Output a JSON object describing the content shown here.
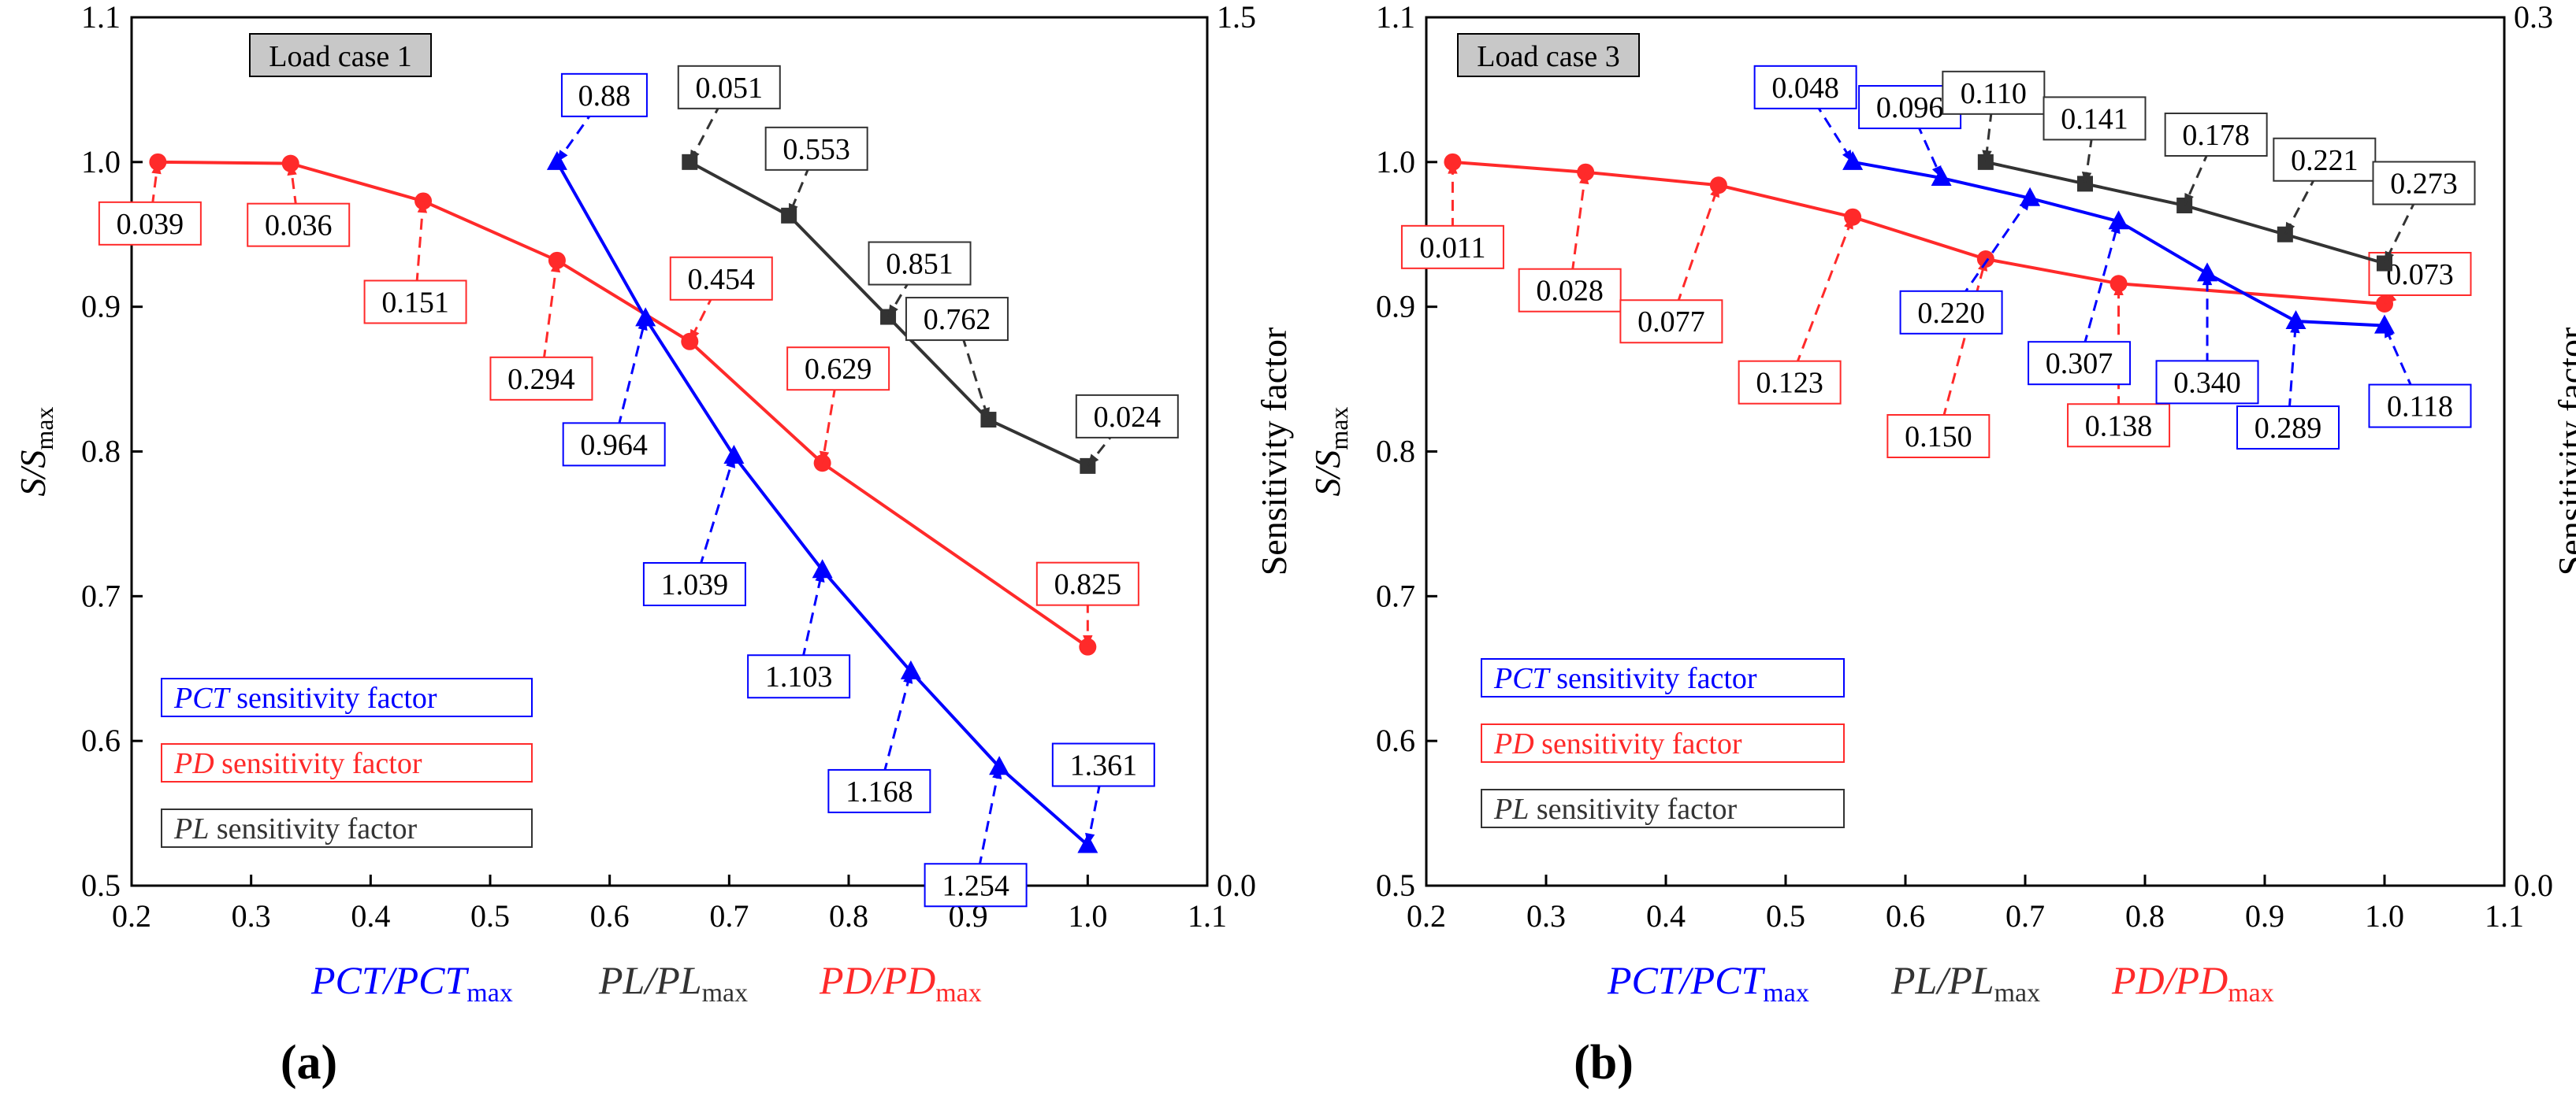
{
  "colors": {
    "blue": "#0000ff",
    "red": "#ff2a2a",
    "black": "#333333",
    "label_bg": "#c8c8c8"
  },
  "chart_data": [
    {
      "panel_label": "(a)",
      "type": "line",
      "case_label": "Load case 1",
      "xlim": [
        0.2,
        1.1
      ],
      "ylim": [
        0.5,
        1.1
      ],
      "y2lim": [
        0.0,
        1.5
      ],
      "xticks": [
        "0.2",
        "0.3",
        "0.4",
        "0.5",
        "0.6",
        "0.7",
        "0.8",
        "0.9",
        "1.0",
        "1.1"
      ],
      "yticks": [
        "0.5",
        "0.6",
        "0.7",
        "0.8",
        "0.9",
        "1.0",
        "1.1"
      ],
      "y2ticks": [
        "0.0",
        "1.5"
      ],
      "ylabel": {
        "main": "S/S",
        "sub": "max"
      },
      "y2label": "Sensitivity factor",
      "xlabel_parts": [
        {
          "main": "PCT/PCT",
          "sub": "max",
          "color": "blue"
        },
        {
          "main": "PL/PL",
          "sub": "max",
          "color": "black"
        },
        {
          "main": "PD/PD",
          "sub": "max",
          "color": "red"
        }
      ],
      "legend": [
        {
          "italic": "PCT",
          "text": " sensitivity factor",
          "color": "blue"
        },
        {
          "italic": "PD",
          "text": " sensitivity factor",
          "color": "red"
        },
        {
          "italic": "PL",
          "text": " sensitivity factor",
          "color": "black"
        }
      ],
      "series": [
        {
          "name": "PD",
          "color": "red",
          "marker": "circle",
          "x": [
            0.222,
            0.333,
            0.444,
            0.556,
            0.667,
            0.778,
            1.0
          ],
          "y": [
            1.0,
            0.999,
            0.973,
            0.932,
            0.876,
            0.792,
            0.665
          ],
          "labels": [
            "0.039",
            "0.036",
            "0.151",
            "0.294",
            "0.454",
            "0.629",
            "0.825"
          ]
        },
        {
          "name": "PCT",
          "color": "blue",
          "marker": "triangle",
          "x": [
            0.556,
            0.63,
            0.704,
            0.778,
            0.852,
            0.926,
            1.0
          ],
          "y": [
            1.0,
            0.892,
            0.797,
            0.718,
            0.648,
            0.582,
            0.528
          ],
          "labels": [
            "0.88",
            "0.964",
            "1.039",
            "1.103",
            "1.168",
            "1.254",
            "1.361"
          ]
        },
        {
          "name": "PL",
          "color": "black",
          "marker": "square",
          "x": [
            0.667,
            0.75,
            0.833,
            0.917,
            1.0
          ],
          "y": [
            1.0,
            0.963,
            0.893,
            0.822,
            0.79
          ],
          "labels": [
            "0.051",
            "0.553",
            "0.851",
            "0.762",
            "0.024"
          ]
        }
      ]
    },
    {
      "panel_label": "(b)",
      "type": "line",
      "case_label": "Load case 3",
      "xlim": [
        0.2,
        1.1
      ],
      "ylim": [
        0.5,
        1.1
      ],
      "y2lim": [
        0.0,
        0.3
      ],
      "xticks": [
        "0.2",
        "0.3",
        "0.4",
        "0.5",
        "0.6",
        "0.7",
        "0.8",
        "0.9",
        "1.0",
        "1.1"
      ],
      "yticks": [
        "0.5",
        "0.6",
        "0.7",
        "0.8",
        "0.9",
        "1.0",
        "1.1"
      ],
      "y2ticks": [
        "0.0",
        "0.3"
      ],
      "ylabel": {
        "main": "S/S",
        "sub": "max"
      },
      "y2label": "Sensitivity factor",
      "xlabel_parts": [
        {
          "main": "PCT/PCT",
          "sub": "max",
          "color": "blue"
        },
        {
          "main": "PL/PL",
          "sub": "max",
          "color": "black"
        },
        {
          "main": "PD/PD",
          "sub": "max",
          "color": "red"
        }
      ],
      "legend": [
        {
          "italic": "PCT",
          "text": " sensitivity factor",
          "color": "blue"
        },
        {
          "italic": "PD",
          "text": " sensitivity factor",
          "color": "red"
        },
        {
          "italic": "PL",
          "text": " sensitivity factor",
          "color": "black"
        }
      ],
      "series": [
        {
          "name": "PD",
          "color": "red",
          "marker": "circle",
          "x": [
            0.222,
            0.333,
            0.444,
            0.556,
            0.667,
            0.778,
            1.0
          ],
          "y": [
            1.0,
            0.993,
            0.984,
            0.962,
            0.933,
            0.916,
            0.902
          ],
          "labels": [
            "0.011",
            "0.028",
            "0.077",
            "0.123",
            "0.150",
            "0.138",
            "0.073"
          ]
        },
        {
          "name": "PCT",
          "color": "blue",
          "marker": "triangle",
          "x": [
            0.556,
            0.63,
            0.704,
            0.778,
            0.852,
            0.926,
            1.0
          ],
          "y": [
            1.0,
            0.989,
            0.975,
            0.959,
            0.923,
            0.89,
            0.887
          ],
          "labels": [
            "0.048",
            "0.096",
            "0.220",
            "0.307",
            "0.340",
            "0.289",
            "0.118"
          ]
        },
        {
          "name": "PL",
          "color": "black",
          "marker": "square",
          "x": [
            0.667,
            0.75,
            0.833,
            0.917,
            1.0
          ],
          "y": [
            1.0,
            0.985,
            0.97,
            0.95,
            0.93
          ],
          "labels": [
            "0.110",
            "0.141",
            "0.178",
            "0.221",
            "0.273"
          ]
        }
      ]
    }
  ]
}
